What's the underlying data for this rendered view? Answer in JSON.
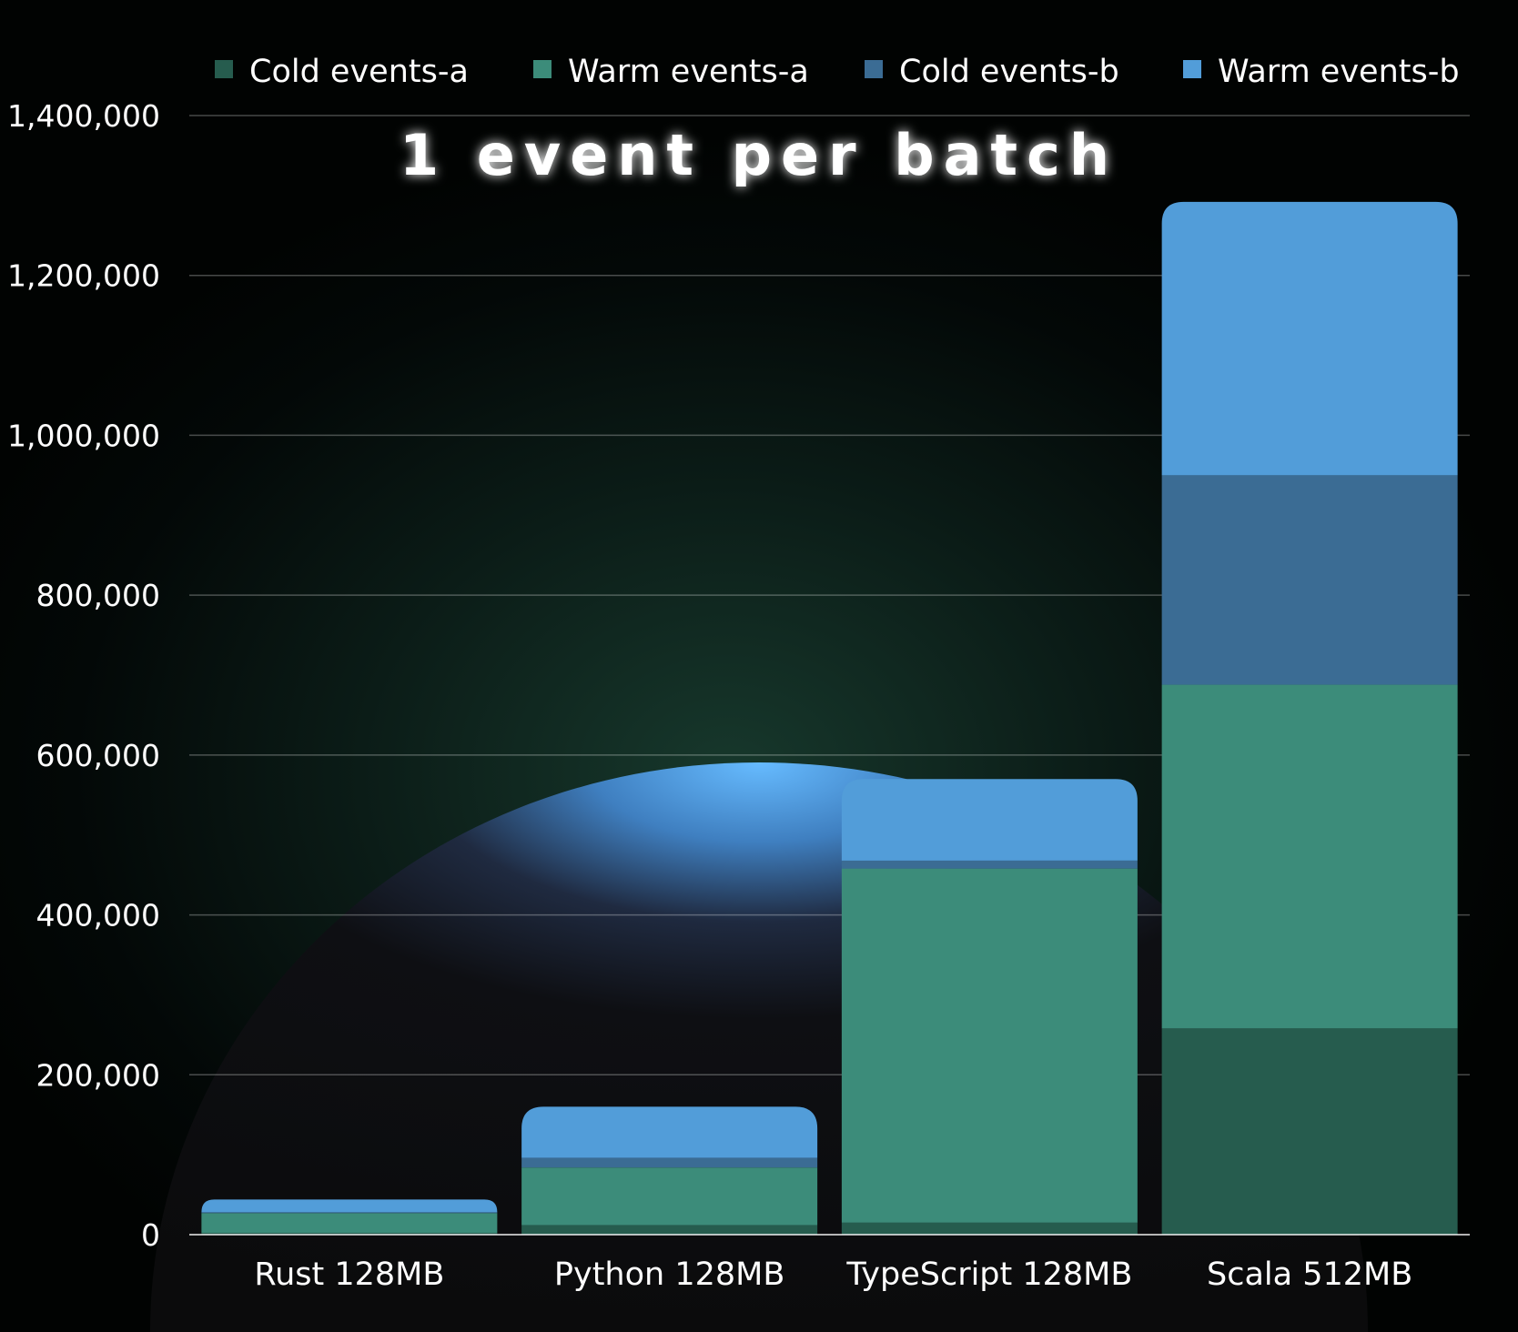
{
  "chart_data": {
    "type": "bar",
    "stacked": true,
    "title": "1 event per batch",
    "xlabel": "",
    "ylabel": "",
    "categories": [
      "Rust 128MB",
      "Python 128MB",
      "TypeScript 128MB",
      "Scala 512MB"
    ],
    "series": [
      {
        "name": "Cold events-a",
        "color": "#265c4e",
        "values": [
          2000,
          12000,
          15000,
          258000
        ]
      },
      {
        "name": "Warm events-a",
        "color": "#3c8c7a",
        "values": [
          25000,
          72000,
          443000,
          430000
        ]
      },
      {
        "name": "Cold events-b",
        "color": "#3b6c94",
        "values": [
          1000,
          12000,
          10000,
          262000
        ]
      },
      {
        "name": "Warm events-b",
        "color": "#529dd9",
        "values": [
          16000,
          64000,
          102000,
          342000
        ]
      }
    ],
    "ylim": [
      0,
      1400000
    ],
    "yticks": [
      0,
      200000,
      400000,
      600000,
      800000,
      1000000,
      1200000,
      1400000
    ],
    "ytick_labels": [
      "0",
      "200,000",
      "400,000",
      "600,000",
      "800,000",
      "1,000,000",
      "1,200,000",
      "1,400,000"
    ],
    "grid": true,
    "legend_position": "top"
  }
}
